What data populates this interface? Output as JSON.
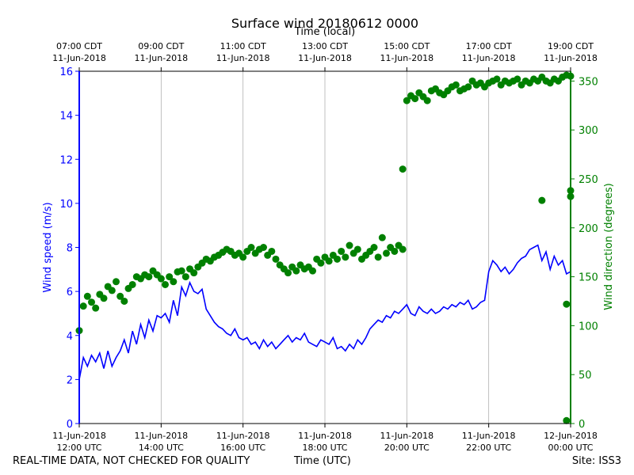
{
  "footer": {
    "left": "REAL-TIME DATA, NOT CHECKED FOR QUALITY",
    "center": "Time (UTC)",
    "right": "Site: ISS3"
  },
  "chart_data": {
    "type": "line+scatter",
    "title": "Surface wind 20180612 0000",
    "top_axis_label": "Time (local)",
    "xlabel": "Time (UTC)",
    "ylabel_left": "Wind speed (m/s)",
    "ylabel_right": "Wind direction (degrees)",
    "x_range_hours_utc": [
      12,
      24
    ],
    "ylim_left": [
      0,
      16
    ],
    "ylim_right": [
      0,
      360
    ],
    "left_ticks": [
      0,
      2,
      4,
      6,
      8,
      10,
      12,
      14,
      16
    ],
    "right_ticks": [
      0,
      50,
      100,
      150,
      200,
      250,
      300,
      350
    ],
    "grid": "vertical",
    "bottom_ticks": [
      {
        "hour": 12,
        "line1": "11-Jun-2018",
        "line2": "12:00 UTC"
      },
      {
        "hour": 14,
        "line1": "11-Jun-2018",
        "line2": "14:00 UTC"
      },
      {
        "hour": 16,
        "line1": "11-Jun-2018",
        "line2": "16:00 UTC"
      },
      {
        "hour": 18,
        "line1": "11-Jun-2018",
        "line2": "18:00 UTC"
      },
      {
        "hour": 20,
        "line1": "11-Jun-2018",
        "line2": "20:00 UTC"
      },
      {
        "hour": 22,
        "line1": "11-Jun-2018",
        "line2": "22:00 UTC"
      },
      {
        "hour": 24,
        "line1": "12-Jun-2018",
        "line2": "00:00 UTC"
      }
    ],
    "top_ticks": [
      {
        "hour": 12,
        "line1": "07:00 CDT",
        "line2": "11-Jun-2018"
      },
      {
        "hour": 14,
        "line1": "09:00 CDT",
        "line2": "11-Jun-2018"
      },
      {
        "hour": 16,
        "line1": "11:00 CDT",
        "line2": "11-Jun-2018"
      },
      {
        "hour": 18,
        "line1": "13:00 CDT",
        "line2": "11-Jun-2018"
      },
      {
        "hour": 20,
        "line1": "15:00 CDT",
        "line2": "11-Jun-2018"
      },
      {
        "hour": 22,
        "line1": "17:00 CDT",
        "line2": "11-Jun-2018"
      },
      {
        "hour": 24,
        "line1": "19:00 CDT",
        "line2": "11-Jun-2018"
      }
    ],
    "series": [
      {
        "name": "Wind speed (m/s)",
        "axis": "left",
        "style": "line",
        "color": "#0000ff",
        "x_hours": [
          12.0,
          12.1,
          12.2,
          12.3,
          12.4,
          12.5,
          12.6,
          12.7,
          12.8,
          12.9,
          13.0,
          13.1,
          13.2,
          13.3,
          13.4,
          13.5,
          13.6,
          13.7,
          13.8,
          13.9,
          14.0,
          14.1,
          14.2,
          14.3,
          14.4,
          14.5,
          14.6,
          14.7,
          14.8,
          14.9,
          15.0,
          15.1,
          15.2,
          15.3,
          15.4,
          15.5,
          15.6,
          15.7,
          15.8,
          15.9,
          16.0,
          16.1,
          16.2,
          16.3,
          16.4,
          16.5,
          16.6,
          16.7,
          16.8,
          16.9,
          17.0,
          17.1,
          17.2,
          17.3,
          17.4,
          17.5,
          17.6,
          17.7,
          17.8,
          17.9,
          18.0,
          18.1,
          18.2,
          18.3,
          18.4,
          18.5,
          18.6,
          18.7,
          18.8,
          18.9,
          19.0,
          19.1,
          19.2,
          19.3,
          19.4,
          19.5,
          19.6,
          19.7,
          19.8,
          19.9,
          20.0,
          20.1,
          20.2,
          20.3,
          20.4,
          20.5,
          20.6,
          20.7,
          20.8,
          20.9,
          21.0,
          21.1,
          21.2,
          21.3,
          21.4,
          21.5,
          21.6,
          21.7,
          21.8,
          21.9,
          22.0,
          22.1,
          22.2,
          22.3,
          22.4,
          22.5,
          22.6,
          22.7,
          22.8,
          22.9,
          23.0,
          23.1,
          23.2,
          23.3,
          23.4,
          23.5,
          23.6,
          23.7,
          23.8,
          23.9,
          24.0
        ],
        "values": [
          2.0,
          3.0,
          2.6,
          3.1,
          2.8,
          3.2,
          2.5,
          3.3,
          2.6,
          3.0,
          3.3,
          3.8,
          3.2,
          4.2,
          3.6,
          4.5,
          3.9,
          4.7,
          4.2,
          4.9,
          4.8,
          5.0,
          4.6,
          5.6,
          4.9,
          6.2,
          5.8,
          6.4,
          6.0,
          5.9,
          6.1,
          5.2,
          4.9,
          4.6,
          4.4,
          4.3,
          4.1,
          4.0,
          4.3,
          3.9,
          3.8,
          3.9,
          3.6,
          3.7,
          3.4,
          3.8,
          3.5,
          3.7,
          3.4,
          3.6,
          3.8,
          4.0,
          3.7,
          3.9,
          3.8,
          4.1,
          3.7,
          3.6,
          3.5,
          3.8,
          3.7,
          3.6,
          3.9,
          3.4,
          3.5,
          3.3,
          3.6,
          3.4,
          3.8,
          3.6,
          3.9,
          4.3,
          4.5,
          4.7,
          4.6,
          4.9,
          4.8,
          5.1,
          5.0,
          5.2,
          5.4,
          5.0,
          4.9,
          5.3,
          5.1,
          5.0,
          5.2,
          5.0,
          5.1,
          5.3,
          5.2,
          5.4,
          5.3,
          5.5,
          5.4,
          5.6,
          5.2,
          5.3,
          5.5,
          5.6,
          6.9,
          7.4,
          7.2,
          6.9,
          7.1,
          6.8,
          7.0,
          7.3,
          7.5,
          7.6,
          7.9,
          8.0,
          8.1,
          7.4,
          7.8,
          7.0,
          7.6,
          7.2,
          7.4,
          6.8,
          6.9
        ]
      },
      {
        "name": "Wind direction (degrees)",
        "axis": "right",
        "style": "markers",
        "color": "#008000",
        "x_hours": [
          12.0,
          12.1,
          12.2,
          12.3,
          12.4,
          12.5,
          12.6,
          12.7,
          12.8,
          12.9,
          13.0,
          13.1,
          13.2,
          13.3,
          13.4,
          13.5,
          13.6,
          13.7,
          13.8,
          13.9,
          14.0,
          14.1,
          14.2,
          14.3,
          14.4,
          14.5,
          14.6,
          14.7,
          14.8,
          14.9,
          15.0,
          15.1,
          15.2,
          15.3,
          15.4,
          15.5,
          15.6,
          15.7,
          15.8,
          15.9,
          16.0,
          16.1,
          16.2,
          16.3,
          16.4,
          16.5,
          16.6,
          16.7,
          16.8,
          16.9,
          17.0,
          17.1,
          17.2,
          17.3,
          17.4,
          17.5,
          17.6,
          17.7,
          17.8,
          17.9,
          18.0,
          18.1,
          18.2,
          18.3,
          18.4,
          18.5,
          18.6,
          18.7,
          18.8,
          18.9,
          19.0,
          19.1,
          19.2,
          19.3,
          19.4,
          19.5,
          19.6,
          19.7,
          19.8,
          19.9,
          20.0,
          20.1,
          20.2,
          20.3,
          20.4,
          20.5,
          20.6,
          20.7,
          20.8,
          20.9,
          21.0,
          21.1,
          21.2,
          21.3,
          21.4,
          21.5,
          21.6,
          21.7,
          21.8,
          21.9,
          22.0,
          22.1,
          22.2,
          22.3,
          22.4,
          22.5,
          22.6,
          22.7,
          22.8,
          22.9,
          23.0,
          23.1,
          23.2,
          23.3,
          23.4,
          23.5,
          23.6,
          23.7,
          23.8,
          23.9,
          24.0
        ],
        "values": [
          95,
          120,
          130,
          124,
          118,
          132,
          128,
          140,
          136,
          145,
          130,
          125,
          138,
          142,
          150,
          148,
          152,
          150,
          156,
          152,
          148,
          142,
          150,
          145,
          155,
          156,
          150,
          158,
          154,
          160,
          164,
          168,
          166,
          170,
          172,
          175,
          178,
          176,
          172,
          174,
          170,
          176,
          180,
          174,
          178,
          180,
          172,
          176,
          168,
          162,
          158,
          154,
          160,
          156,
          162,
          158,
          160,
          156,
          168,
          164,
          170,
          166,
          172,
          168,
          176,
          170,
          182,
          174,
          178,
          168,
          172,
          176,
          180,
          170,
          190,
          174,
          180,
          176,
          182,
          178,
          330,
          335,
          332,
          338,
          334,
          330,
          340,
          342,
          338,
          336,
          340,
          344,
          346,
          340,
          342,
          344,
          350,
          346,
          348,
          344,
          348,
          350,
          352,
          346,
          350,
          348,
          350,
          352,
          346,
          350,
          348,
          352,
          350,
          354,
          350,
          348,
          352,
          350,
          354,
          356,
          355
        ]
      }
    ],
    "outliers_direction": [
      {
        "x_hour": 19.9,
        "value": 260
      },
      {
        "x_hour": 23.3,
        "value": 228
      },
      {
        "x_hour": 23.9,
        "value": 122
      },
      {
        "x_hour": 23.9,
        "value": 3
      },
      {
        "x_hour": 24.0,
        "value": 238
      },
      {
        "x_hour": 24.0,
        "value": 232
      }
    ]
  }
}
